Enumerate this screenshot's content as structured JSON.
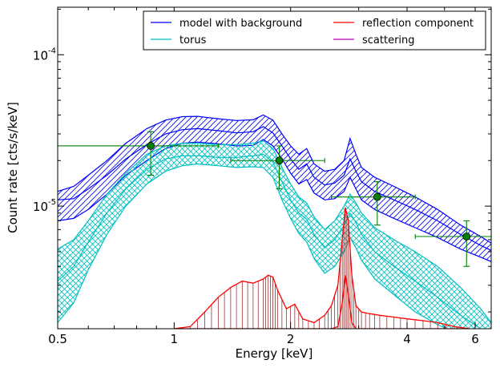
{
  "chart_data": {
    "type": "line",
    "title": "",
    "xlabel": "Energy [keV]",
    "ylabel": "Count rate [cts/s/keV]",
    "xscale": "log",
    "yscale": "log",
    "xlim": [
      0.5,
      6.6
    ],
    "ylim": [
      1.55e-06,
      0.000206
    ],
    "grid": false,
    "legend_position": "top-right",
    "xticks": [
      {
        "value": 0.5,
        "label": "0.5"
      },
      {
        "value": 1,
        "label": "1"
      },
      {
        "value": 2,
        "label": "2"
      },
      {
        "value": 4,
        "label": "4"
      },
      {
        "value": 6,
        "label": "6"
      }
    ],
    "yticks": [
      {
        "value": 1e-05,
        "base": "10",
        "exp": "-5"
      },
      {
        "value": 0.0001,
        "base": "10",
        "exp": "-4"
      }
    ],
    "legend": [
      {
        "label": "model with background",
        "color": "#0000ff"
      },
      {
        "label": "reflection component",
        "color": "#ff0000"
      },
      {
        "label": "torus",
        "color": "#00bfbf"
      },
      {
        "label": "scattering",
        "color": "#bf00bf"
      }
    ],
    "series": [
      {
        "name": "model with background",
        "color": "#0000ff",
        "x": [
          0.5,
          0.55,
          0.6,
          0.67,
          0.75,
          0.85,
          0.95,
          1.05,
          1.15,
          1.3,
          1.45,
          1.6,
          1.7,
          1.8,
          1.9,
          2.0,
          2.1,
          2.2,
          2.3,
          2.45,
          2.6,
          2.75,
          2.85,
          2.95,
          3.05,
          3.3,
          3.7,
          4.2,
          4.8,
          5.5,
          6.2,
          6.6
        ],
        "upper": [
          1.25e-05,
          1.35e-05,
          1.6e-05,
          2e-05,
          2.6e-05,
          3.25e-05,
          3.7e-05,
          3.9e-05,
          3.92e-05,
          3.78e-05,
          3.68e-05,
          3.72e-05,
          4e-05,
          3.7e-05,
          3e-05,
          2.5e-05,
          2.2e-05,
          2.4e-05,
          1.9e-05,
          1.7e-05,
          1.75e-05,
          2e-05,
          2.8e-05,
          2.2e-05,
          1.8e-05,
          1.55e-05,
          1.35e-05,
          1.15e-05,
          9.5e-06,
          7.5e-06,
          6.3e-06,
          5.7e-06
        ],
        "center": [
          1.1e-05,
          1.12e-05,
          1.3e-05,
          1.6e-05,
          2.05e-05,
          2.55e-05,
          3e-05,
          3.2e-05,
          3.25e-05,
          3.15e-05,
          3.05e-05,
          3.1e-05,
          3.35e-05,
          3.05e-05,
          2.5e-05,
          2.05e-05,
          1.75e-05,
          1.9e-05,
          1.55e-05,
          1.38e-05,
          1.42e-05,
          1.6e-05,
          2.05e-05,
          1.7e-05,
          1.45e-05,
          1.25e-05,
          1.1e-05,
          9.5e-06,
          8e-06,
          6.5e-06,
          5.5e-06,
          5.1e-06
        ],
        "lower": [
          8e-06,
          8.3e-06,
          9.5e-06,
          1.2e-05,
          1.6e-05,
          2e-05,
          2.4e-05,
          2.6e-05,
          2.65e-05,
          2.58e-05,
          2.5e-05,
          2.52e-05,
          2.75e-05,
          2.5e-05,
          2.05e-05,
          1.65e-05,
          1.4e-05,
          1.5e-05,
          1.22e-05,
          1.1e-05,
          1.12e-05,
          1.25e-05,
          1.55e-05,
          1.3e-05,
          1.1e-05,
          9.5e-06,
          8.3e-06,
          7.2e-06,
          6.2e-06,
          5.2e-06,
          4.6e-06,
          4.3e-06
        ]
      },
      {
        "name": "torus",
        "color": "#00bfbf",
        "x": [
          0.5,
          0.55,
          0.6,
          0.67,
          0.75,
          0.85,
          0.95,
          1.05,
          1.15,
          1.3,
          1.45,
          1.6,
          1.7,
          1.8,
          1.9,
          2.0,
          2.1,
          2.2,
          2.3,
          2.45,
          2.6,
          2.75,
          2.85,
          2.95,
          3.05,
          3.3,
          3.7,
          4.2,
          4.8,
          5.5,
          6.2,
          6.6
        ],
        "upper": [
          5.2e-06,
          6e-06,
          8e-06,
          1.2e-05,
          1.65e-05,
          2.2e-05,
          2.5e-05,
          2.6e-05,
          2.6e-05,
          2.55e-05,
          2.55e-05,
          2.6e-05,
          2.7e-05,
          2.4e-05,
          1.8e-05,
          1.4e-05,
          1.15e-05,
          1.05e-05,
          8.5e-06,
          7e-06,
          8e-06,
          1e-05,
          1.2e-05,
          1.05e-05,
          9e-06,
          7.2e-06,
          6e-06,
          5e-06,
          4e-06,
          2.9e-06,
          2.1e-06,
          1.7e-06
        ],
        "center": [
          3.2e-06,
          4e-06,
          5.8e-06,
          9e-06,
          1.3e-05,
          1.75e-05,
          2.05e-05,
          2.15e-05,
          2.15e-05,
          2.1e-05,
          2.1e-05,
          2.15e-05,
          2.2e-05,
          1.95e-05,
          1.45e-05,
          1.1e-05,
          9e-06,
          8.2e-06,
          6.5e-06,
          5.3e-06,
          6e-06,
          7.5e-06,
          9e-06,
          7.8e-06,
          6.5e-06,
          5e-06,
          4e-06,
          3.2e-06,
          2.5e-06,
          1.9e-06,
          1.55e-06,
          1.4e-06
        ],
        "lower": [
          1.7e-06,
          2.3e-06,
          3.8e-06,
          6.5e-06,
          1e-05,
          1.4e-05,
          1.7e-05,
          1.85e-05,
          1.9e-05,
          1.85e-05,
          1.8e-05,
          1.82e-05,
          1.8e-05,
          1.55e-05,
          1.1e-05,
          8.3e-06,
          6.6e-06,
          5.8e-06,
          4.5e-06,
          3.6e-06,
          4e-06,
          5e-06,
          6.2e-06,
          5.3e-06,
          4.4e-06,
          3.3e-06,
          2.6e-06,
          2e-06,
          1.65e-06,
          1.4e-06,
          1.2e-06,
          1.1e-06
        ]
      },
      {
        "name": "reflection component",
        "color": "#ff0000",
        "x": [
          1.0,
          1.1,
          1.2,
          1.3,
          1.4,
          1.5,
          1.6,
          1.7,
          1.75,
          1.8,
          1.85,
          1.95,
          2.05,
          2.15,
          2.3,
          2.45,
          2.55,
          2.65,
          2.72,
          2.77,
          2.82,
          2.88,
          2.95,
          3.05,
          3.2,
          3.4,
          3.7,
          4.0,
          4.4,
          4.8,
          5.3,
          5.8
        ],
        "upper": [
          1.55e-06,
          1.6e-06,
          2e-06,
          2.5e-06,
          2.9e-06,
          3.2e-06,
          3.1e-06,
          3.3e-06,
          3.5e-06,
          3.4e-06,
          2.8e-06,
          2.1e-06,
          2.25e-06,
          1.8e-06,
          1.7e-06,
          1.9e-06,
          2.2e-06,
          3e-06,
          6e-06,
          9.8e-06,
          8e-06,
          3.5e-06,
          2.2e-06,
          2e-06,
          1.95e-06,
          1.9e-06,
          1.85e-06,
          1.8e-06,
          1.75e-06,
          1.7e-06,
          1.6e-06,
          1.55e-06
        ],
        "lower": [
          1.55e-06,
          1.55e-06,
          1.55e-06,
          1.55e-06,
          1.55e-06,
          1.55e-06,
          1.55e-06,
          1.55e-06,
          1.55e-06,
          1.55e-06,
          1.55e-06,
          1.55e-06,
          1.55e-06,
          1.55e-06,
          1.55e-06,
          1.55e-06,
          1.55e-06,
          1.6e-06,
          2.3e-06,
          3.5e-06,
          2.6e-06,
          1.7e-06,
          1.55e-06,
          1.55e-06,
          1.55e-06,
          1.55e-06,
          1.55e-06,
          1.55e-06,
          1.55e-06,
          1.55e-06,
          1.55e-06,
          1.55e-06
        ]
      },
      {
        "name": "scattering",
        "color": "#bf00bf",
        "x": [],
        "values": []
      }
    ],
    "data_points": {
      "color": "#008000",
      "points": [
        {
          "x": 0.87,
          "y": 2.5e-05,
          "xerr": [
            0.5,
            1.3
          ],
          "yerr": [
            1.6e-05,
            3.1e-05
          ]
        },
        {
          "x": 1.87,
          "y": 2e-05,
          "xerr": [
            1.4,
            2.45
          ],
          "yerr": [
            1.3e-05,
            2.5e-05
          ]
        },
        {
          "x": 3.35,
          "y": 1.15e-05,
          "xerr": [
            2.55,
            4.2
          ],
          "yerr": [
            7.5e-06,
            1.45e-05
          ]
        },
        {
          "x": 5.7,
          "y": 6.3e-06,
          "xerr": [
            4.2,
            6.6
          ],
          "yerr": [
            4e-06,
            8e-06
          ]
        }
      ]
    }
  }
}
